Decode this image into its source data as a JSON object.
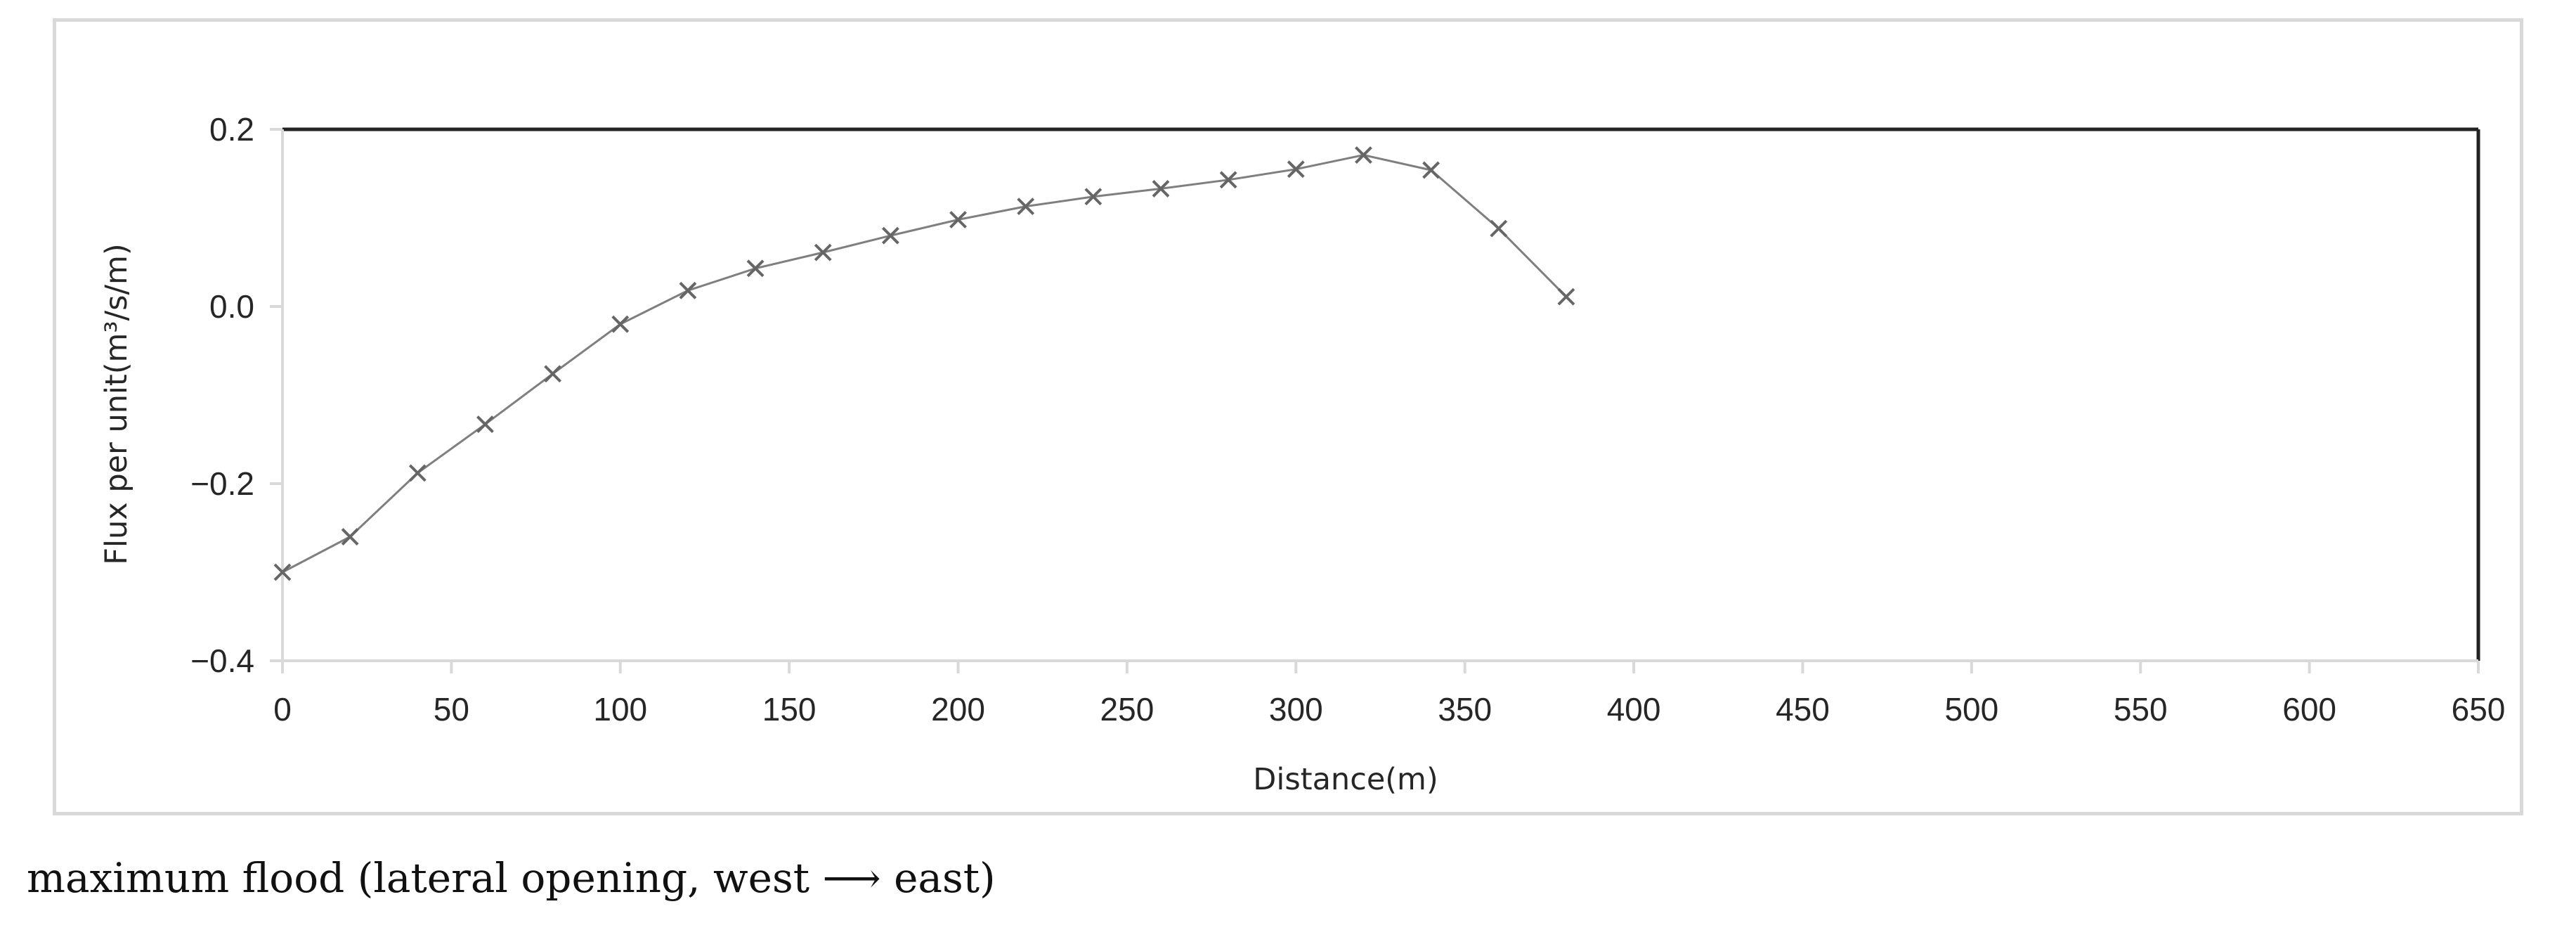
{
  "caption": "maximum flood (lateral opening, west ⟶ east)",
  "chart_data": {
    "type": "line",
    "xlabel": "Distance(m)",
    "ylabel": "Flux per unit(m³/s/m)",
    "xlim": [
      0,
      650
    ],
    "ylim": [
      -0.4,
      0.2
    ],
    "xticks": [
      0,
      50,
      100,
      150,
      200,
      250,
      300,
      350,
      400,
      450,
      500,
      550,
      600,
      650
    ],
    "yticks": [
      -0.4,
      -0.2,
      0.0,
      0.2
    ],
    "ytick_labels": [
      "−0.4",
      "−0.2",
      "0.0",
      "0.2"
    ],
    "grid": false,
    "marker": "x",
    "line_color": "#7f7f7f",
    "series": [
      {
        "x": [
          0,
          20,
          40,
          60,
          80,
          100,
          120,
          140,
          160,
          180,
          200,
          220,
          240,
          260,
          280,
          300,
          320,
          340,
          360,
          380
        ],
        "values": [
          -0.3,
          -0.26,
          -0.188,
          -0.133,
          -0.076,
          -0.02,
          0.018,
          0.043,
          0.061,
          0.08,
          0.098,
          0.113,
          0.124,
          0.133,
          0.143,
          0.155,
          0.171,
          0.154,
          0.088,
          0.011
        ]
      }
    ]
  }
}
